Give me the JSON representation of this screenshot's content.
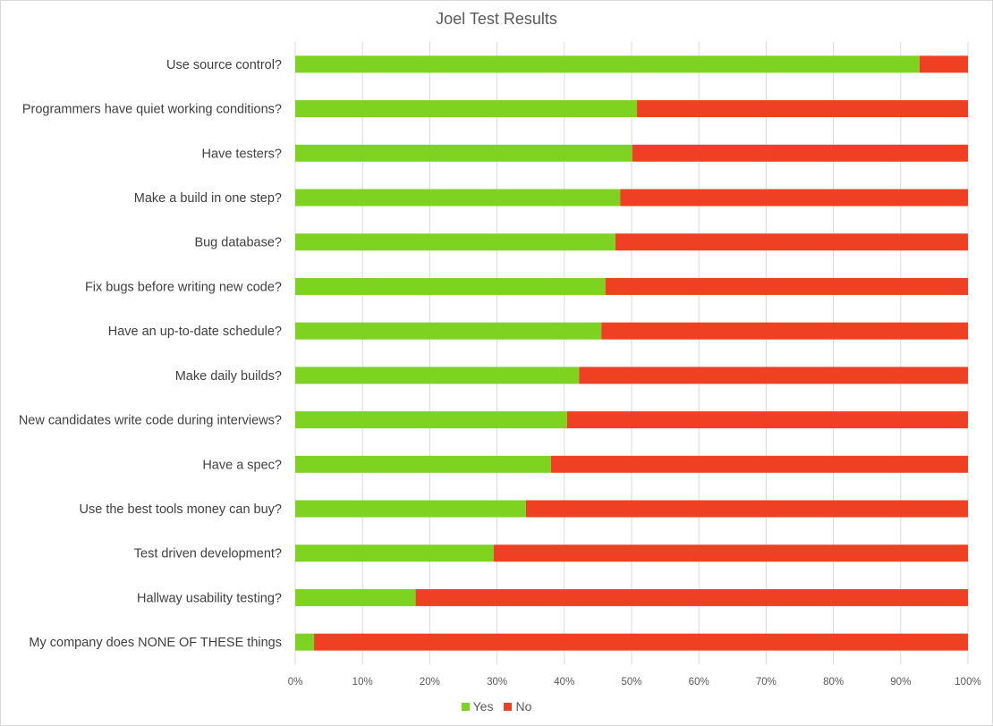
{
  "chart_data": {
    "type": "bar",
    "orientation": "horizontal",
    "stacked": "percent",
    "title": "Joel Test Results",
    "xlabel": "",
    "ylabel": "",
    "xlim": [
      0,
      100
    ],
    "x_ticks": [
      "0%",
      "10%",
      "20%",
      "30%",
      "40%",
      "50%",
      "60%",
      "70%",
      "80%",
      "90%",
      "100%"
    ],
    "legend_position": "bottom",
    "grid": "vertical",
    "categories": [
      "Use source control?",
      "Programmers have quiet working conditions?",
      "Have testers?",
      "Make a build in one step?",
      "Bug database?",
      "Fix bugs before writing new code?",
      "Have an up-to-date schedule?",
      "Make daily builds?",
      "New candidates write code during interviews?",
      "Have a spec?",
      "Use the best tools money can buy?",
      "Test driven development?",
      "Hallway usability testing?",
      "My company does NONE OF THESE things"
    ],
    "series": [
      {
        "name": "Yes",
        "color": "#7ed321",
        "values": [
          92.8,
          50.8,
          50.1,
          48.3,
          47.6,
          46.1,
          45.5,
          42.2,
          40.4,
          38.0,
          34.3,
          29.5,
          17.9,
          2.8
        ]
      },
      {
        "name": "No",
        "color": "#f04023",
        "values": [
          7.2,
          49.2,
          49.9,
          51.7,
          52.4,
          53.9,
          54.5,
          57.8,
          59.6,
          62.0,
          65.7,
          70.5,
          82.1,
          97.2
        ]
      }
    ]
  }
}
